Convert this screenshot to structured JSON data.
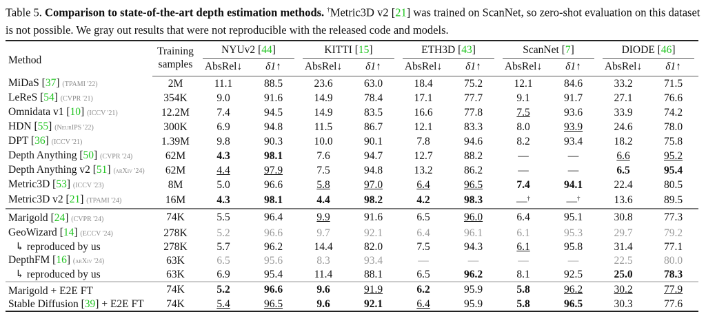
{
  "caption": {
    "label": "Table 5.",
    "title": "Comparison to state-of-the-art depth estimation methods.",
    "dagger": "†",
    "text1": "Metric3D v2 [",
    "cite": "21",
    "text2": "] was trained on ScanNet, so zero-shot evaluation on this dataset is not possible. We gray out results that were not reproducible with the released code and models."
  },
  "header": {
    "method": "Method",
    "training_line1": "Training",
    "training_line2": "samples",
    "datasets": [
      {
        "name": "NYUv2",
        "cite": "44"
      },
      {
        "name": "KITTI",
        "cite": "15"
      },
      {
        "name": "ETH3D",
        "cite": "43"
      },
      {
        "name": "ScanNet",
        "cite": "7"
      },
      {
        "name": "DIODE",
        "cite": "46"
      }
    ],
    "metric_absrel": "AbsRel↓",
    "metric_delta": "δ1↑"
  },
  "style_legend": {
    "b": "bold (best)",
    "u": "underline (second)",
    "g": "gray (not reproducible)",
    "d": "dagger"
  },
  "colors": {
    "citation": "#1fc41f",
    "gray_out": "#9a9a9a",
    "venue": "#888888"
  },
  "groups": [
    [
      {
        "method": "MiDaS",
        "cite": "37",
        "venue": "(TPAMI '22)",
        "samples": "2M",
        "values": [
          "11.1",
          "88.5",
          "23.6",
          "63.0",
          "18.4",
          "75.2",
          "12.1",
          "84.6",
          "33.2",
          "71.5"
        ],
        "styles": ".........."
      },
      {
        "method": "LeReS",
        "cite": "54",
        "venue": "(CVPR '21)",
        "samples": "354K",
        "values": [
          "9.0",
          "91.6",
          "14.9",
          "78.4",
          "17.1",
          "77.7",
          "9.1",
          "91.7",
          "27.1",
          "76.6"
        ],
        "styles": ".........."
      },
      {
        "method": "Omnidata v1",
        "cite": "10",
        "venue": "(ICCV '21)",
        "samples": "12.2M",
        "values": [
          "7.4",
          "94.5",
          "14.9",
          "83.5",
          "16.6",
          "77.8",
          "7.5",
          "93.6",
          "33.9",
          "74.2"
        ],
        "styles": "......u..."
      },
      {
        "method": "HDN",
        "cite": "55",
        "venue": "(NeurIPS '22)",
        "samples": "300K",
        "values": [
          "6.9",
          "94.8",
          "11.5",
          "86.7",
          "12.1",
          "83.3",
          "8.0",
          "93.9",
          "24.6",
          "78.0"
        ],
        "styles": ".......u.."
      },
      {
        "method": "DPT",
        "cite": "36",
        "venue": "(ICCV '21)",
        "samples": "1.39M",
        "values": [
          "9.8",
          "90.3",
          "10.0",
          "90.1",
          "7.8",
          "94.6",
          "8.2",
          "93.4",
          "18.2",
          "75.8"
        ],
        "styles": ".........."
      },
      {
        "method": "Depth Anything",
        "cite": "50",
        "venue": "(CVPR '24)",
        "samples": "62M",
        "values": [
          "4.3",
          "98.1",
          "7.6",
          "94.7",
          "12.7",
          "88.2",
          "—",
          "—",
          "6.6",
          "95.2"
        ],
        "styles": "bb......uu"
      },
      {
        "method": "Depth Anything v2",
        "cite": "51",
        "venue": "(arXiv '24)",
        "samples": "62M",
        "values": [
          "4.4",
          "97.9",
          "7.5",
          "94.8",
          "13.2",
          "86.2",
          "—",
          "—",
          "6.5",
          "95.4"
        ],
        "styles": "uu......bb"
      },
      {
        "method": "Metric3D",
        "cite": "53",
        "venue": "(ICCV '23)",
        "samples": "8M",
        "values": [
          "5.0",
          "96.6",
          "5.8",
          "97.0",
          "6.4",
          "96.5",
          "7.4",
          "94.1",
          "22.4",
          "80.5"
        ],
        "styles": "..uuuubb.."
      },
      {
        "method": "Metric3D v2",
        "cite": "21",
        "venue": "(TPAMI '24)",
        "samples": "16M",
        "values": [
          "4.3",
          "98.1",
          "4.4",
          "98.2",
          "4.2",
          "98.3",
          "—",
          "—",
          "13.6",
          "89.5"
        ],
        "styles": "bbbbbbdd.."
      }
    ],
    [
      {
        "method": "Marigold",
        "cite": "24",
        "venue": "(CVPR '24)",
        "samples": "74K",
        "values": [
          "5.5",
          "96.4",
          "9.9",
          "91.6",
          "6.5",
          "96.0",
          "6.4",
          "95.1",
          "30.8",
          "77.3"
        ],
        "styles": "..u..u...."
      },
      {
        "method": "GeoWizard",
        "cite": "14",
        "venue": "(ECCV '24)",
        "samples": "278K",
        "values": [
          "5.2",
          "96.6",
          "9.7",
          "92.1",
          "6.4",
          "96.1",
          "6.1",
          "95.3",
          "29.7",
          "79.2"
        ],
        "styles": "gggggggggg"
      },
      {
        "method": "↳ reproduced by us",
        "cite": "",
        "venue": "",
        "samples": "278K",
        "values": [
          "5.7",
          "96.2",
          "14.4",
          "82.0",
          "7.5",
          "94.3",
          "6.1",
          "95.8",
          "31.4",
          "77.1"
        ],
        "styles": "......u..."
      },
      {
        "method": "DepthFM",
        "cite": "16",
        "venue": "(arXiv '24)",
        "samples": "63K",
        "values": [
          "6.5",
          "95.6",
          "8.3",
          "93.4",
          "—",
          "—",
          "—",
          "—",
          "22.5",
          "80.0"
        ],
        "styles": "gggggggggg"
      },
      {
        "method": "↳ reproduced by us",
        "cite": "",
        "venue": "",
        "samples": "63K",
        "values": [
          "6.9",
          "95.4",
          "11.4",
          "88.1",
          "6.5",
          "96.2",
          "8.1",
          "92.5",
          "25.0",
          "78.3"
        ],
        "styles": ".....b..bb"
      }
    ],
    [
      {
        "method": "Marigold + E2E FT",
        "cite": "",
        "venue": "",
        "samples": "74K",
        "values": [
          "5.2",
          "96.6",
          "9.6",
          "91.9",
          "6.2",
          "95.9",
          "5.8",
          "96.2",
          "30.2",
          "77.9"
        ],
        "styles": "bbbub.buuu"
      },
      {
        "method": "Stable Diffusion",
        "cite": "39",
        "venue": "",
        "suffix": " + E2E FT",
        "samples": "74K",
        "values": [
          "5.4",
          "96.5",
          "9.6",
          "92.1",
          "6.4",
          "95.9",
          "5.8",
          "96.5",
          "30.3",
          "77.6"
        ],
        "styles": "uubbu.bb.."
      }
    ]
  ]
}
